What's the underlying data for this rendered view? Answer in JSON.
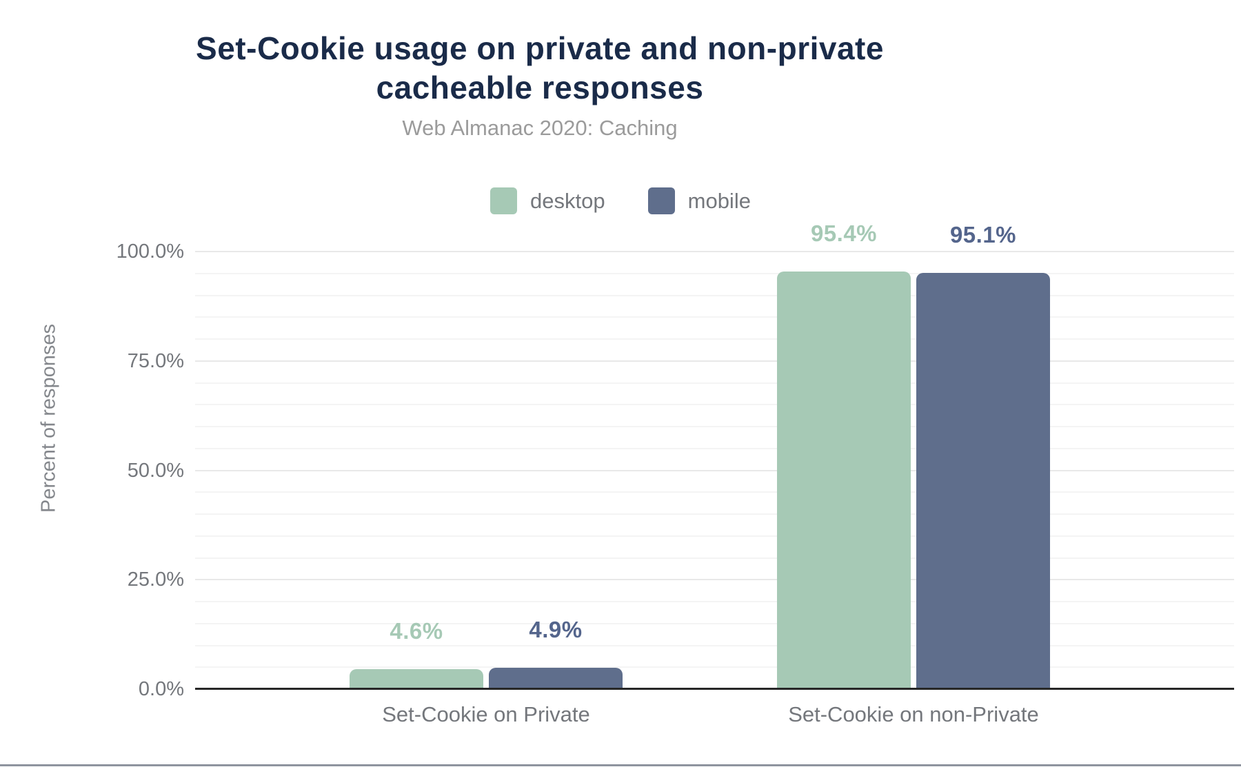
{
  "page": {
    "background": "#ffffff",
    "bottom_border_color": "#8d939e"
  },
  "chart_data": {
    "type": "bar",
    "title": "Set-Cookie usage on private and non-private cacheable responses",
    "subtitle": "Web Almanac 2020: Caching",
    "categories": [
      "Set-Cookie on Private",
      "Set-Cookie on non-Private"
    ],
    "series": [
      {
        "name": "desktop",
        "color": "#a6c9b5",
        "label_color": "#a6c9b5",
        "values": [
          4.6,
          95.4
        ],
        "value_labels": [
          "4.6%",
          "95.4%"
        ]
      },
      {
        "name": "mobile",
        "color": "#5f6e8c",
        "label_color": "#54658c",
        "values": [
          4.9,
          95.1
        ],
        "value_labels": [
          "4.9%",
          "95.1%"
        ]
      }
    ],
    "xlabel": "",
    "ylabel": "Percent of responses",
    "ylim": [
      0,
      100
    ],
    "yticks": [
      {
        "value": 0,
        "label": "0.0%"
      },
      {
        "value": 25,
        "label": "25.0%"
      },
      {
        "value": 50,
        "label": "50.0%"
      },
      {
        "value": 75,
        "label": "75.0%"
      },
      {
        "value": 100,
        "label": "100.0%"
      }
    ],
    "grid": {
      "orientation": "horizontal",
      "minor_step": 5,
      "major_step": 25
    },
    "legend_position": "top",
    "title_color": "#1a2b49",
    "subtitle_color": "#9b9b9b",
    "text_color": "#74777c",
    "axis_line_color": "#262626"
  }
}
